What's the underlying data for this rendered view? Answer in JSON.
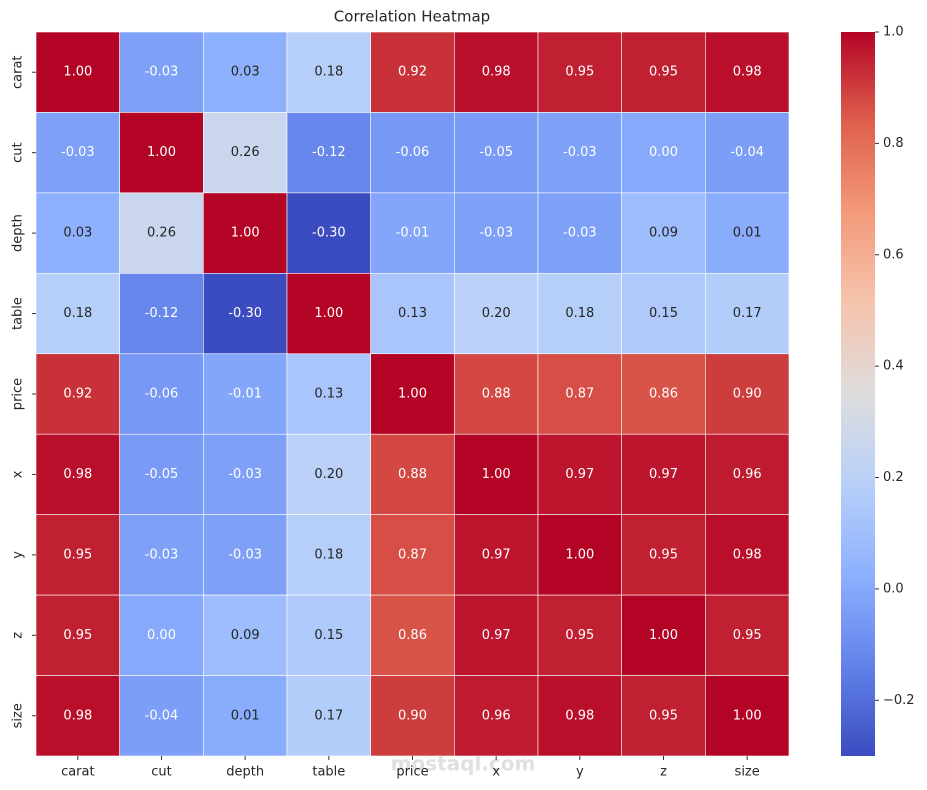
{
  "chart_data": {
    "type": "heatmap",
    "title": "Correlation Heatmap",
    "x_categories": [
      "carat",
      "cut",
      "depth",
      "table",
      "price",
      "x",
      "y",
      "z",
      "size"
    ],
    "y_categories": [
      "carat",
      "cut",
      "depth",
      "table",
      "price",
      "x",
      "y",
      "z",
      "size"
    ],
    "values": [
      [
        1.0,
        -0.03,
        0.03,
        0.18,
        0.92,
        0.98,
        0.95,
        0.95,
        0.98
      ],
      [
        -0.03,
        1.0,
        0.26,
        -0.12,
        -0.06,
        -0.05,
        -0.03,
        0.0,
        -0.04
      ],
      [
        0.03,
        0.26,
        1.0,
        -0.3,
        -0.01,
        -0.03,
        -0.03,
        0.09,
        0.01
      ],
      [
        0.18,
        -0.12,
        -0.3,
        1.0,
        0.13,
        0.2,
        0.18,
        0.15,
        0.17
      ],
      [
        0.92,
        -0.06,
        -0.01,
        0.13,
        1.0,
        0.88,
        0.87,
        0.86,
        0.9
      ],
      [
        0.98,
        -0.05,
        -0.03,
        0.2,
        0.88,
        1.0,
        0.97,
        0.97,
        0.96
      ],
      [
        0.95,
        -0.03,
        -0.03,
        0.18,
        0.87,
        0.97,
        1.0,
        0.95,
        0.98
      ],
      [
        0.95,
        0.0,
        0.09,
        0.15,
        0.86,
        0.97,
        0.95,
        1.0,
        0.95
      ],
      [
        0.98,
        -0.04,
        0.01,
        0.17,
        0.9,
        0.96,
        0.98,
        0.95,
        1.0
      ]
    ],
    "value_labels": [
      [
        "1.00",
        "-0.03",
        "0.03",
        "0.18",
        "0.92",
        "0.98",
        "0.95",
        "0.95",
        "0.98"
      ],
      [
        "-0.03",
        "1.00",
        "0.26",
        "-0.12",
        "-0.06",
        "-0.05",
        "-0.03",
        "0.00",
        "-0.04"
      ],
      [
        "0.03",
        "0.26",
        "1.00",
        "-0.30",
        "-0.01",
        "-0.03",
        "-0.03",
        "0.09",
        "0.01"
      ],
      [
        "0.18",
        "-0.12",
        "-0.30",
        "1.00",
        "0.13",
        "0.20",
        "0.18",
        "0.15",
        "0.17"
      ],
      [
        "0.92",
        "-0.06",
        "-0.01",
        "0.13",
        "1.00",
        "0.88",
        "0.87",
        "0.86",
        "0.90"
      ],
      [
        "0.98",
        "-0.05",
        "-0.03",
        "0.20",
        "0.88",
        "1.00",
        "0.97",
        "0.97",
        "0.96"
      ],
      [
        "0.95",
        "-0.03",
        "-0.03",
        "0.18",
        "0.87",
        "0.97",
        "1.00",
        "0.95",
        "0.98"
      ],
      [
        "0.95",
        "0.00",
        "0.09",
        "0.15",
        "0.86",
        "0.97",
        "0.95",
        "1.00",
        "0.95"
      ],
      [
        "0.98",
        "-0.04",
        "0.01",
        "0.17",
        "0.90",
        "0.96",
        "0.98",
        "0.95",
        "1.00"
      ]
    ],
    "colormap": "coolwarm",
    "clim": [
      -0.3,
      1.0
    ],
    "cticks": [
      {
        "value": 1.0,
        "label": "1.0"
      },
      0.8,
      0.6,
      0.4,
      0.2,
      {
        "value": 0.0,
        "label": "0.0"
      },
      {
        "value": -0.2,
        "label": "−0.2"
      }
    ],
    "watermark": "mostaql.com"
  }
}
